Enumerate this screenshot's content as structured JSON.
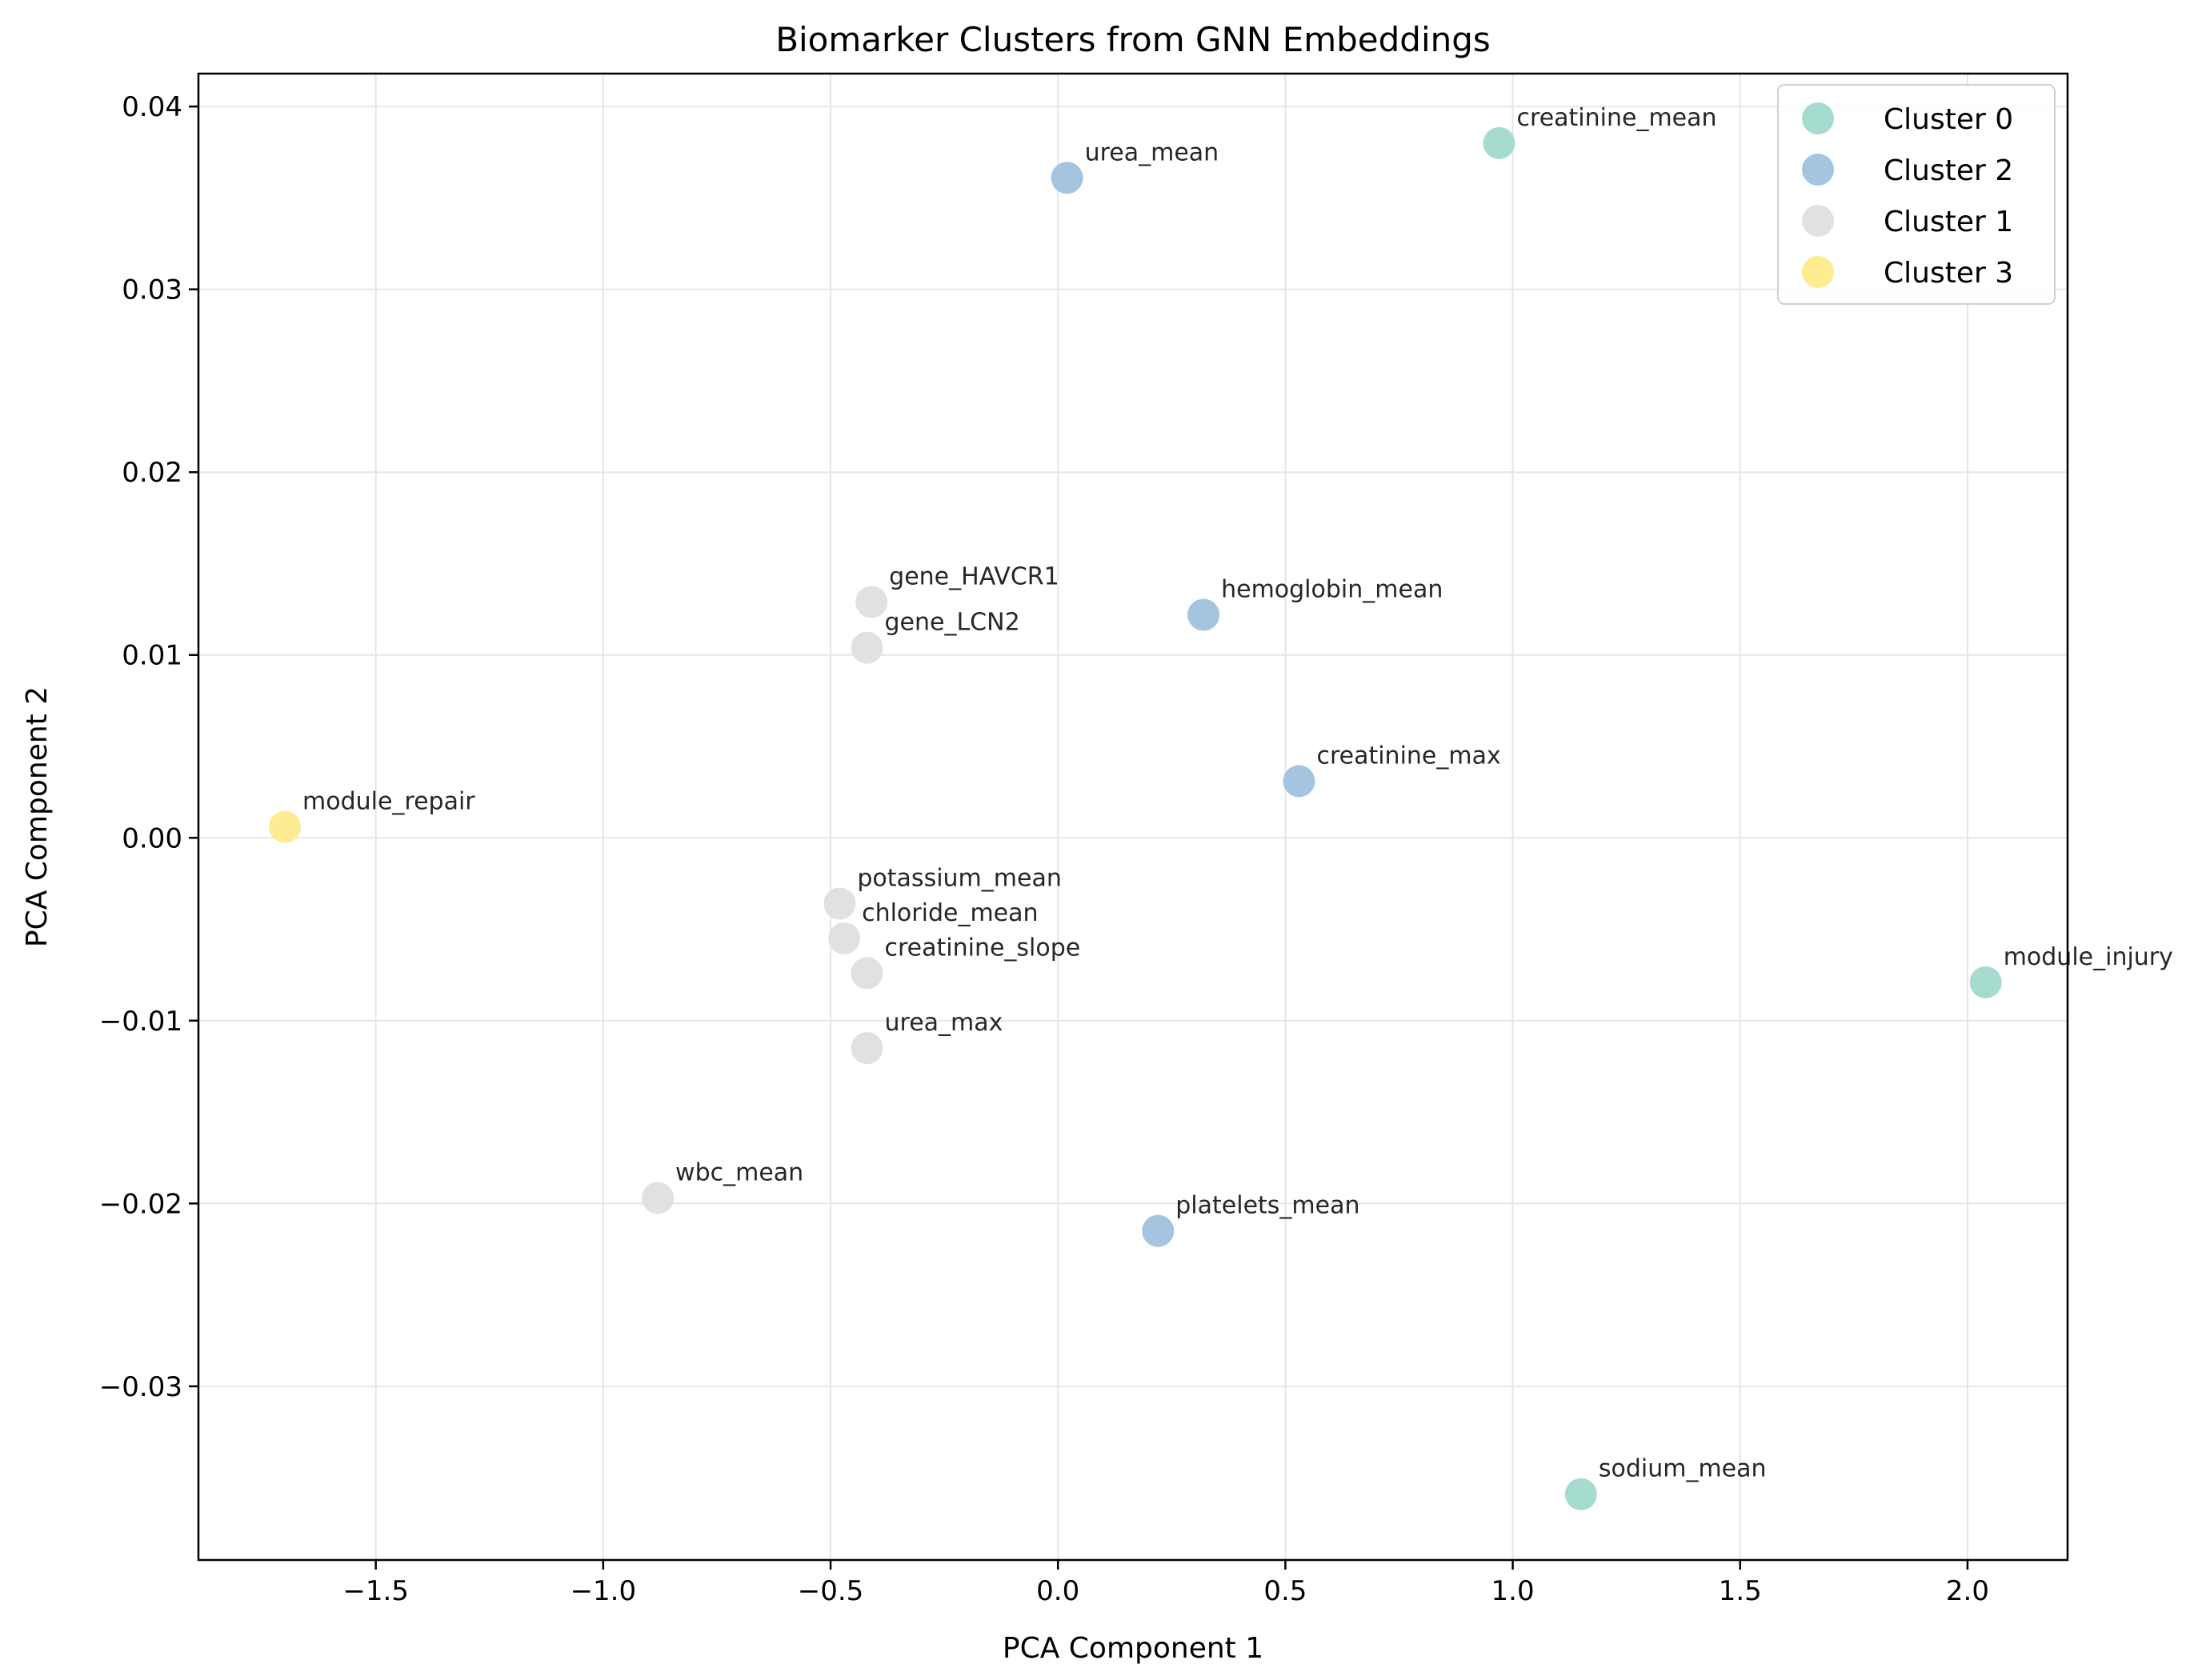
{
  "chart_data": {
    "type": "scatter",
    "title": "Biomarker Clusters from GNN Embeddings",
    "xlabel": "PCA Component 1",
    "ylabel": "PCA Component 2",
    "xlim": [
      -1.89,
      2.22
    ],
    "ylim": [
      -0.0395,
      0.0418
    ],
    "xticks": [
      -1.5,
      -1.0,
      -0.5,
      0.0,
      0.5,
      1.0,
      1.5,
      2.0
    ],
    "xtick_labels": [
      "−1.5",
      "−1.0",
      "−0.5",
      "0.0",
      "0.5",
      "1.0",
      "1.5",
      "2.0"
    ],
    "yticks": [
      -0.03,
      -0.02,
      -0.01,
      0.0,
      0.01,
      0.02,
      0.03,
      0.04
    ],
    "ytick_labels": [
      "−0.03",
      "−0.02",
      "−0.01",
      "0.00",
      "0.01",
      "0.02",
      "0.03",
      "0.04"
    ],
    "grid": true,
    "legend_position": "top-right",
    "series": [
      {
        "name": "Cluster 0",
        "color": "#a6dbcf",
        "points": [
          {
            "label": "creatinine_mean",
            "x": 0.97,
            "y": 0.038
          },
          {
            "label": "module_injury",
            "x": 2.04,
            "y": -0.0079
          },
          {
            "label": "sodium_mean",
            "x": 1.15,
            "y": -0.0359
          }
        ]
      },
      {
        "name": "Cluster 2",
        "color": "#a4c4e0",
        "points": [
          {
            "label": "urea_mean",
            "x": 0.02,
            "y": 0.0361
          },
          {
            "label": "hemoglobin_mean",
            "x": 0.32,
            "y": 0.0122
          },
          {
            "label": "creatinine_max",
            "x": 0.53,
            "y": 0.0031
          },
          {
            "label": "platelets_mean",
            "x": 0.22,
            "y": -0.0215
          }
        ]
      },
      {
        "name": "Cluster 1",
        "color": "#e1e1e1",
        "points": [
          {
            "label": "gene_HAVCR1",
            "x": -0.41,
            "y": 0.0129
          },
          {
            "label": "gene_LCN2",
            "x": -0.42,
            "y": 0.0104
          },
          {
            "label": "potassium_mean",
            "x": -0.48,
            "y": -0.0036
          },
          {
            "label": "chloride_mean",
            "x": -0.47,
            "y": -0.0055
          },
          {
            "label": "creatinine_slope",
            "x": -0.42,
            "y": -0.0074
          },
          {
            "label": "urea_max",
            "x": -0.42,
            "y": -0.0115
          },
          {
            "label": "wbc_mean",
            "x": -0.88,
            "y": -0.0197
          }
        ]
      },
      {
        "name": "Cluster 3",
        "color": "#fdec91",
        "points": [
          {
            "label": "module_repair",
            "x": -1.7,
            "y": 0.0006
          }
        ]
      }
    ]
  }
}
